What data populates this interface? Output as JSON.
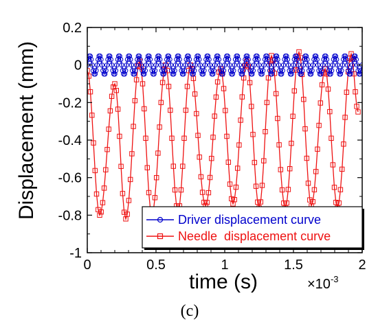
{
  "chart_data": {
    "type": "line",
    "xlabel": "time (s)",
    "ylabel": "Displacement (mm)",
    "x_multiplier": {
      "base": "×10",
      "exponent": "-3"
    },
    "xlim": [
      0,
      2
    ],
    "ylim": [
      -1,
      0.2
    ],
    "x_ticks": [
      "0",
      "0.5",
      "1",
      "1.5",
      "2"
    ],
    "y_ticks": [
      "0.2",
      "0",
      "-0.2",
      "-0.4",
      "-0.6",
      "-0.8",
      "-1"
    ],
    "grid": false,
    "legend_position": "bottom-right",
    "caption": "(c)",
    "colors": {
      "driver": "#0000cc",
      "needle": "#ee1111",
      "axes": "#000000"
    },
    "series": [
      {
        "name": "Driver displacement curve",
        "color": "#0000cc",
        "marker": "circle",
        "period": 0.0714,
        "amplitude": 0.05,
        "x_start": 0.0,
        "x_end": 2.0,
        "points_per_period": 10
      },
      {
        "name": "Needle  displacement curve",
        "color": "#ee1111",
        "marker": "square",
        "peaks": [
          {
            "x": 0.0,
            "y": -0.03
          },
          {
            "x": 0.09,
            "y": -0.8
          },
          {
            "x": 0.2,
            "y": -0.1
          },
          {
            "x": 0.28,
            "y": -0.82
          },
          {
            "x": 0.38,
            "y": 0.02
          },
          {
            "x": 0.47,
            "y": -0.8
          },
          {
            "x": 0.57,
            "y": 0.0
          },
          {
            "x": 0.66,
            "y": -0.78
          },
          {
            "x": 0.75,
            "y": 0.0
          },
          {
            "x": 0.86,
            "y": -0.75
          },
          {
            "x": 0.97,
            "y": -0.02
          },
          {
            "x": 1.06,
            "y": -0.74
          },
          {
            "x": 1.16,
            "y": 0.02
          },
          {
            "x": 1.25,
            "y": -0.76
          },
          {
            "x": 1.34,
            "y": 0.05
          },
          {
            "x": 1.44,
            "y": -0.76
          },
          {
            "x": 1.54,
            "y": 0.07
          },
          {
            "x": 1.63,
            "y": -0.75
          },
          {
            "x": 1.73,
            "y": -0.02
          },
          {
            "x": 1.82,
            "y": -0.76
          },
          {
            "x": 1.92,
            "y": 0.06
          },
          {
            "x": 1.97,
            "y": -0.25
          }
        ]
      }
    ]
  }
}
